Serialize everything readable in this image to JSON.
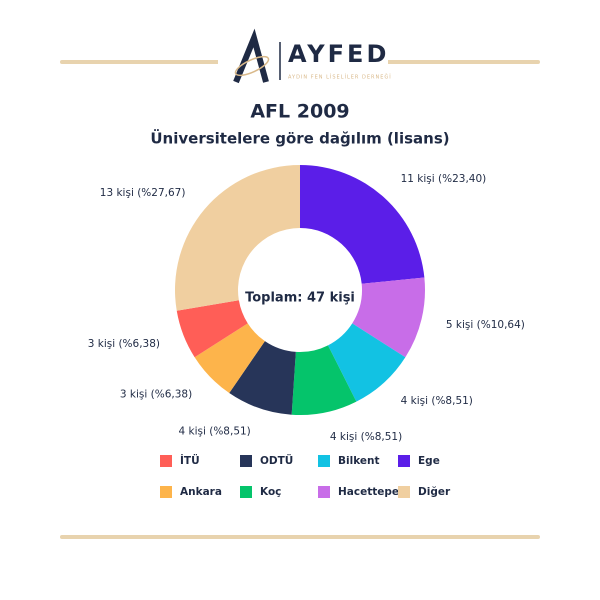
{
  "header": {
    "logo": "AYFED",
    "logo_subtitle": "AYDIN FEN LİSELİLER DERNEĞİ"
  },
  "chart_data": {
    "type": "donut",
    "title": "AFL 2009",
    "subtitle": "Üniversitelere göre dağılım (lisans)",
    "center_label": "Toplam: 47 kişi",
    "categories": [
      "Ege",
      "Hacettepe",
      "Bilkent",
      "Koç",
      "ODTÜ",
      "Ankara",
      "İTÜ",
      "Diğer"
    ],
    "values": [
      11,
      5,
      4,
      4,
      4,
      3,
      3,
      13
    ],
    "value_labels": [
      "11 kişi (%23,40)",
      "5 kişi (%10,64)",
      "4 kişi (%8,51)",
      "4 kişi (%8,51)",
      "4 kişi (%8,51)",
      "3 kişi (%6,38)",
      "3 kişi (%6,38)",
      "13 kişi (%27,67)"
    ],
    "colors": [
      "#5b1ee8",
      "#c86de8",
      "#12c2e3",
      "#05c46b",
      "#273559",
      "#fdb44b",
      "#ff5e57",
      "#f0cfa0"
    ]
  }
}
